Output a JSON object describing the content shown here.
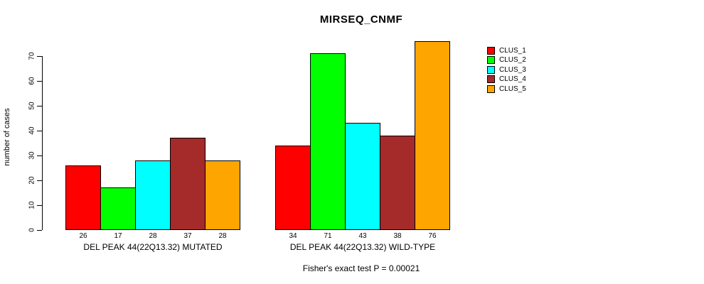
{
  "title": "MIRSEQ_CNMF",
  "chart_data": {
    "type": "bar",
    "title": "MIRSEQ_CNMF",
    "xlabel": "",
    "ylabel": "number of cases",
    "ylim": [
      0,
      76
    ],
    "yticks": [
      0,
      10,
      20,
      30,
      40,
      50,
      60,
      70
    ],
    "grid": false,
    "legend_position": "right",
    "series": [
      "CLUS_1",
      "CLUS_2",
      "CLUS_3",
      "CLUS_4",
      "CLUS_5"
    ],
    "colors": [
      "#FF0000",
      "#00FF00",
      "#00FFFF",
      "#A52A2A",
      "#FFA500"
    ],
    "groups": [
      {
        "label": "DEL PEAK 44(22Q13.32) MUTATED",
        "values": [
          26,
          17,
          28,
          37,
          28
        ],
        "value_labels": [
          "26",
          "17",
          "28",
          "37",
          "28"
        ]
      },
      {
        "label": "DEL PEAK 44(22Q13.32) WILD-TYPE",
        "values": [
          34,
          71,
          43,
          38,
          76
        ],
        "value_labels": [
          "34",
          "71",
          "43",
          "38",
          "76"
        ]
      }
    ],
    "annotation": "Fisher's exact test P = 0.00021"
  }
}
